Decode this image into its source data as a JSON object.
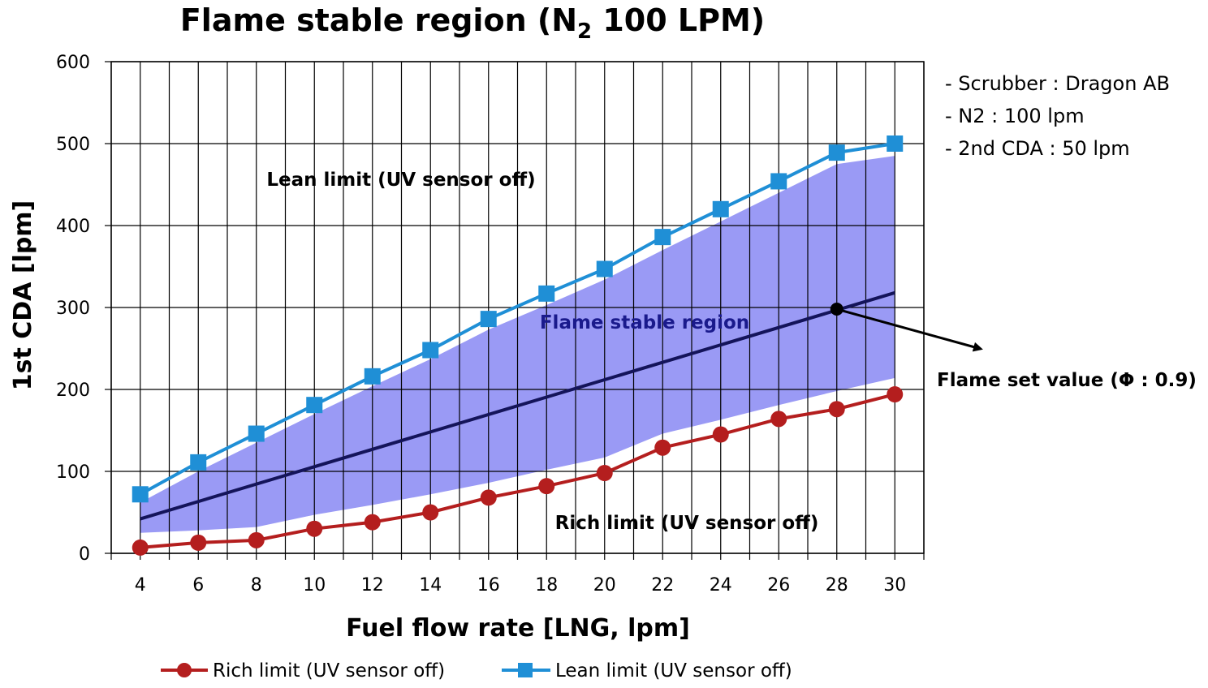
{
  "chart_data": {
    "type": "line",
    "title": "Flame stable region (N",
    "title_sub": "2",
    "title_tail": " 100 LPM)",
    "xlabel": "Fuel flow rate [LNG, lpm]",
    "ylabel": "1st CDA [lpm]",
    "x": [
      4,
      6,
      8,
      10,
      12,
      14,
      16,
      18,
      20,
      22,
      24,
      26,
      28,
      30
    ],
    "xlim": [
      3,
      31
    ],
    "ylim": [
      0,
      600
    ],
    "yticks": [
      0,
      100,
      200,
      300,
      400,
      500,
      600
    ],
    "grid": true,
    "legend_position": "bottom",
    "series": [
      {
        "name": "Rich limit (UV sensor off)",
        "color": "#b41e1e",
        "marker": "circle",
        "values": [
          7,
          13,
          16,
          30,
          38,
          50,
          68,
          82,
          98,
          129,
          145,
          164,
          176,
          194
        ]
      },
      {
        "name": "Lean limit (UV sensor off)",
        "color": "#1f8fd6",
        "marker": "square",
        "values": [
          72,
          111,
          146,
          181,
          216,
          248,
          286,
          317,
          347,
          386,
          420,
          454,
          489,
          500
        ]
      }
    ],
    "set_value_line": {
      "color": "#14145a",
      "x": [
        4,
        30
      ],
      "y": [
        42,
        318
      ]
    },
    "stable_region": {
      "color": "#9a9af5",
      "x": [
        4,
        6,
        8,
        10,
        12,
        14,
        16,
        18,
        20,
        22,
        24,
        26,
        28,
        30
      ],
      "upper": [
        62,
        100,
        135,
        170,
        204,
        237,
        273,
        303,
        334,
        370,
        405,
        440,
        475,
        485
      ],
      "lower": [
        25,
        28,
        32,
        47,
        59,
        72,
        86,
        102,
        117,
        146,
        163,
        181,
        198,
        214
      ]
    },
    "set_point": {
      "x": 28,
      "y": 298
    },
    "annotations": {
      "lean": "Lean limit (UV sensor off)",
      "rich": "Rich limit (UV sensor off)",
      "region": "Flame stable region",
      "set_value": "Flame set value (Φ : 0.9)"
    },
    "notes": [
      "- Scrubber : Dragon AB",
      "- N2 : 100 lpm",
      "- 2nd CDA : 50 lpm"
    ]
  }
}
